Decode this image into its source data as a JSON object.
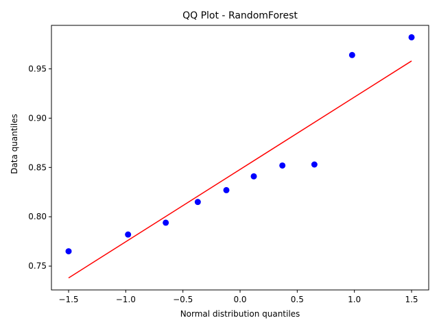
{
  "chart_data": {
    "type": "scatter",
    "title": "QQ Plot - RandomForest",
    "xlabel": "Normal distribution quantiles",
    "ylabel": "Data quantiles",
    "xlim": [
      -1.65,
      1.65
    ],
    "ylim": [
      0.7258,
      0.9941
    ],
    "xticks": [
      -1.5,
      -1.0,
      -0.5,
      0.0,
      0.5,
      1.0,
      1.5
    ],
    "xtick_labels": [
      "−1.5",
      "−1.0",
      "−0.5",
      "0.0",
      "0.5",
      "1.0",
      "1.5"
    ],
    "yticks": [
      0.75,
      0.8,
      0.85,
      0.9,
      0.95
    ],
    "ytick_labels": [
      "0.75",
      "0.80",
      "0.85",
      "0.90",
      "0.95"
    ],
    "grid": false,
    "points": {
      "color": "#0000ff",
      "x": [
        -1.5,
        -0.98,
        -0.65,
        -0.37,
        -0.12,
        0.12,
        0.37,
        0.65,
        0.98,
        1.5
      ],
      "y": [
        0.765,
        0.782,
        0.794,
        0.815,
        0.827,
        0.841,
        0.852,
        0.853,
        0.964,
        0.982
      ]
    },
    "fit_line": {
      "color": "#ff0000",
      "x": [
        -1.5,
        1.5
      ],
      "y": [
        0.738,
        0.958
      ]
    }
  }
}
